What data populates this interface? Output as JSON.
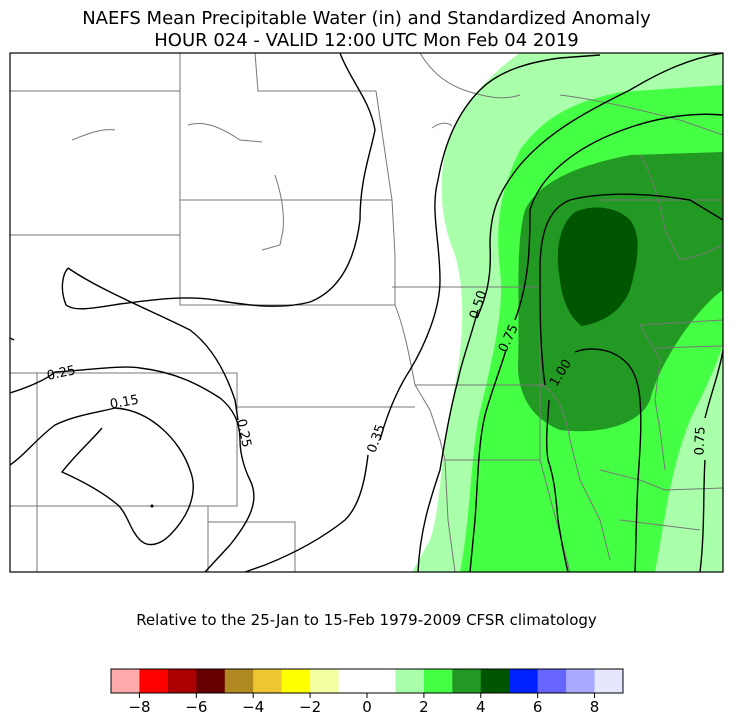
{
  "title_line1": "NAEFS Mean Precipitable Water (in) and Standardized Anomaly",
  "title_line2": "HOUR 024 - VALID 12:00 UTC Mon Feb 04 2019",
  "caption": "Relative to the 25-Jan to 15-Feb 1979-2009 CFSR climatology",
  "contour_labels": [
    {
      "text": "0.25",
      "value": 0.25
    },
    {
      "text": "0.15",
      "value": 0.15
    },
    {
      "text": "0.25",
      "value": 0.25
    },
    {
      "text": "0.35",
      "value": 0.35
    },
    {
      "text": "0.50",
      "value": 0.5
    },
    {
      "text": "0.75",
      "value": 0.75
    },
    {
      "text": "1.00",
      "value": 1.0
    },
    {
      "text": "0.75",
      "value": 0.75
    }
  ],
  "colorbar": {
    "colors": [
      "#ffaaaa",
      "#ff0000",
      "#aa0000",
      "#660000",
      "#b08a20",
      "#eec632",
      "#ffff00",
      "#f3ffa0",
      "#ffffff",
      "#ffffff",
      "#aaffaa",
      "#44ff44",
      "#229922",
      "#005500",
      "#0022ff",
      "#6666ff",
      "#aaaaff",
      "#e6e6ff"
    ],
    "tick_labels": [
      "−8",
      "−6",
      "−4",
      "−2",
      "0",
      "2",
      "4",
      "6",
      "8"
    ]
  },
  "anomaly_fill_colors": {
    "sd_1_2": "#aaffaa",
    "sd_2_3": "#44ff44",
    "sd_3_4": "#229922",
    "sd_4_5": "#005500"
  }
}
